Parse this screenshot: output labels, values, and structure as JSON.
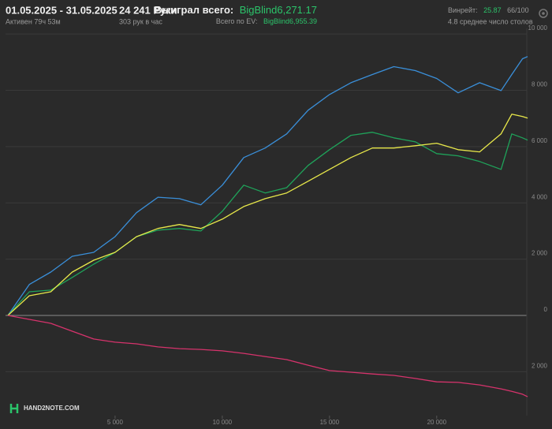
{
  "chart_data": {
    "type": "line",
    "header": {
      "date_range": "01.05.2025 - 31.05.2025",
      "active": "Активен 79ч 53м",
      "hands": "24 241 Руки",
      "hands_per_hour": "303 рук в час",
      "won_label": "Выиграл всего:",
      "won_value": "BigBlind6,271.17",
      "ev_label": "Всего по EV:",
      "ev_value": "BigBlind6,955.39",
      "winrate_label": "Винрейт:",
      "winrate_value": "25.87",
      "winrate_rest": "66/100",
      "tables": "4.8 среднее число столов"
    },
    "logo": "HAND2NOTE.COM",
    "x": [
      0,
      1000,
      2000,
      3000,
      4000,
      5000,
      6000,
      7000,
      8000,
      9000,
      10000,
      11000,
      12000,
      13000,
      14000,
      15000,
      16000,
      17000,
      18000,
      19000,
      20000,
      21000,
      22000,
      23000,
      23500,
      24000,
      24241
    ],
    "series": [
      {
        "color": "#3a8fd9",
        "values": [
          0,
          1100,
          1540,
          2100,
          2240,
          2800,
          3650,
          4200,
          4150,
          3930,
          4630,
          5610,
          5950,
          6450,
          7290,
          7850,
          8270,
          8560,
          8840,
          8700,
          8420,
          7910,
          8270,
          7990,
          8560,
          9120,
          9200
        ]
      },
      {
        "color": "#1fa35a",
        "values": [
          0,
          840,
          900,
          1350,
          1820,
          2240,
          2800,
          3030,
          3090,
          3000,
          3700,
          4630,
          4350,
          4540,
          5330,
          5890,
          6400,
          6510,
          6310,
          6170,
          5750,
          5670,
          5470,
          5190,
          6450,
          6310,
          6230
        ]
      },
      {
        "color": "#e8e84a",
        "values": [
          0,
          700,
          840,
          1540,
          1960,
          2240,
          2800,
          3090,
          3230,
          3090,
          3420,
          3870,
          4150,
          4350,
          4770,
          5190,
          5610,
          5950,
          5950,
          6030,
          6120,
          5890,
          5810,
          6450,
          7150,
          7070,
          7010
        ]
      },
      {
        "color": "#d6336c",
        "values": [
          0,
          -140,
          -280,
          -560,
          -840,
          -950,
          -1010,
          -1120,
          -1180,
          -1210,
          -1260,
          -1350,
          -1460,
          -1570,
          -1770,
          -1960,
          -2020,
          -2080,
          -2130,
          -2240,
          -2360,
          -2380,
          -2470,
          -2610,
          -2700,
          -2800,
          -2890
        ]
      }
    ],
    "xlim": [
      -110,
      24200
    ],
    "ylim": [
      -3560,
      10200
    ],
    "xticks": [
      {
        "value": 5000,
        "label": "5 000"
      },
      {
        "value": 10000,
        "label": "10 000"
      },
      {
        "value": 15000,
        "label": "15 000"
      },
      {
        "value": 20000,
        "label": "20 000"
      }
    ],
    "yticks": [
      {
        "value": -2000,
        "label": "2 000"
      },
      0,
      {
        "value": 2000,
        "label": "2 000"
      },
      {
        "value": 4000,
        "label": "4 000"
      },
      {
        "value": 6000,
        "label": "6 000"
      },
      {
        "value": 8000,
        "label": "8 000"
      },
      {
        "value": 10000,
        "label": "10 000"
      }
    ],
    "grid": true
  }
}
